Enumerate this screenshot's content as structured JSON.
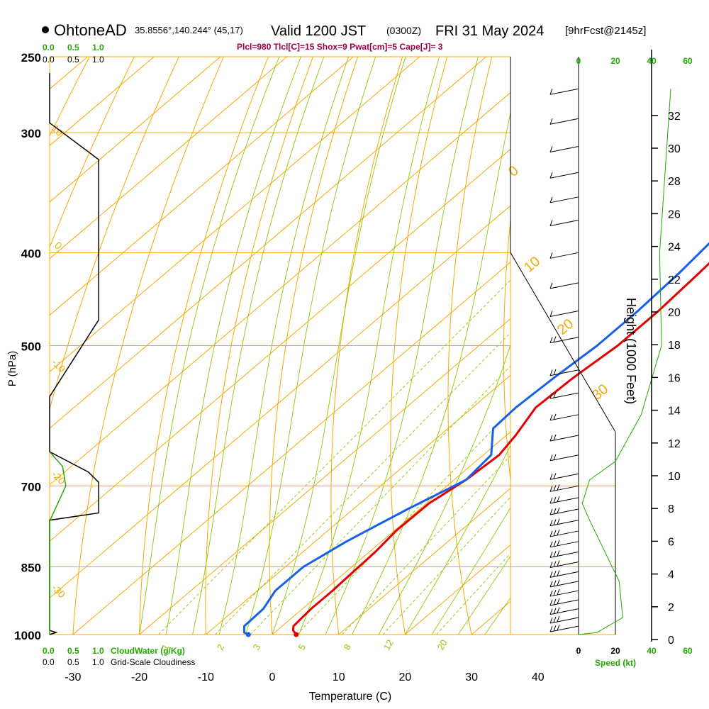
{
  "header": {
    "station": "OhtoneAD",
    "coords": "35.8556°,140.244° (45,17)",
    "valid": "Valid 1200 JST",
    "valid_z": "(0300Z)",
    "date": "FRI 31 May 2024",
    "fcst": "[9hrFcst@2145z]",
    "indices": "Plcl=980 Tlcl[C]=15 Shox=9 Pwat[cm]=5 Cape[J]= 3"
  },
  "colors": {
    "temperature": "#e00000",
    "dewpoint": "#1560e8",
    "isobar": "#f5a800",
    "dry_adiabat": "#f5a800",
    "moist_adiabat": "#8cc800",
    "mixing_ratio": "#8cc800",
    "green_text": "#22aa00",
    "maroon_text": "#a0004a"
  },
  "chart_data": {
    "type": "line",
    "xlabel": "Temperature (C)",
    "ylabel": "P (hPa)",
    "y2label": "Height (1000 Feet)",
    "x_ticks": [
      -30,
      -20,
      -10,
      0,
      10,
      20,
      30,
      40
    ],
    "pressure_ticks": [
      250,
      300,
      400,
      500,
      700,
      850,
      1000
    ],
    "height_ticks": [
      0,
      2,
      4,
      6,
      8,
      10,
      12,
      14,
      16,
      18,
      20,
      22,
      24,
      26,
      28,
      30,
      32
    ],
    "xlim": [
      -35,
      36
    ],
    "ylim": [
      1000,
      250
    ],
    "dry_adiabat_labels": [
      "10",
      "0",
      "-10",
      "-20",
      "-30"
    ],
    "theta_labels": [
      "0",
      "10",
      "20",
      "30"
    ],
    "mixing_ratio_labels": [
      "1",
      "2",
      "3",
      "5",
      "8",
      "12",
      "20"
    ],
    "cloud_axis": {
      "top_labels_green": [
        "0.0",
        "0.5",
        "1.0"
      ],
      "top_labels_black": [
        "0.0",
        "0.5",
        "1.0"
      ],
      "bottom_green_labels": [
        "0.0",
        "0.5",
        "1.0"
      ],
      "bottom_green_title": "CloudWater (g/Kg)",
      "bottom_black_labels": [
        "0.0",
        "0.5",
        "1.0"
      ],
      "bottom_black_title": "Grid-Scale Cloudiness"
    },
    "speed_axis": {
      "title": "Speed (kt)",
      "top_labels": [
        "0",
        "20",
        "40",
        "60"
      ],
      "bottom_labels": [
        "0",
        "20",
        "40",
        "60"
      ]
    },
    "series": [
      {
        "name": "Temperature",
        "points": [
          [
            -7.2,
            265
          ],
          [
            -5.8,
            280
          ],
          [
            -4.0,
            300
          ],
          [
            -2.5,
            325
          ],
          [
            -1.5,
            350
          ],
          [
            -0.5,
            380
          ],
          [
            0.3,
            420
          ],
          [
            0.9,
            460
          ],
          [
            0.9,
            500
          ],
          [
            -0.1,
            540
          ],
          [
            -0.5,
            580
          ],
          [
            1.4,
            620
          ],
          [
            2.4,
            650
          ],
          [
            1.8,
            690
          ],
          [
            0.4,
            730
          ],
          [
            0.3,
            780
          ],
          [
            0.9,
            820
          ],
          [
            1.1,
            860
          ],
          [
            1.3,
            900
          ],
          [
            1.3,
            940
          ],
          [
            1.7,
            980
          ],
          [
            2.4,
            990
          ],
          [
            3.6,
            1000
          ]
        ]
      },
      {
        "name": "Dewpoint",
        "points": [
          [
            -11.4,
            265
          ],
          [
            -9.4,
            290
          ],
          [
            -8.1,
            305
          ],
          [
            -6.3,
            325
          ],
          [
            -4.8,
            350
          ],
          [
            -3.7,
            380
          ],
          [
            -2.7,
            420
          ],
          [
            -2.2,
            460
          ],
          [
            -2.2,
            500
          ],
          [
            -3.0,
            540
          ],
          [
            -3.5,
            580
          ],
          [
            -3.2,
            610
          ],
          [
            1.2,
            650
          ],
          [
            1.8,
            690
          ],
          [
            -1.8,
            740
          ],
          [
            -5.3,
            800
          ],
          [
            -7.3,
            850
          ],
          [
            -7.3,
            900
          ],
          [
            -5.9,
            940
          ],
          [
            -5.7,
            980
          ],
          [
            -4.6,
            995
          ],
          [
            -3.6,
            1000
          ]
        ]
      }
    ],
    "cloudiness_profile": [
      [
        0.0,
        260
      ],
      [
        0.0,
        293
      ],
      [
        0.76,
        320
      ],
      [
        0.76,
        470
      ],
      [
        0.0,
        565
      ],
      [
        0.0,
        645
      ],
      [
        0.6,
        677
      ],
      [
        0.76,
        694
      ],
      [
        0.76,
        747
      ],
      [
        0.0,
        760
      ],
      [
        0.0,
        990
      ],
      [
        0.1,
        995
      ],
      [
        0.0,
        1000
      ]
    ],
    "cloudwater_profile": [
      [
        0.0,
        645
      ],
      [
        0.2,
        668
      ],
      [
        0.25,
        700
      ],
      [
        0.0,
        762
      ],
      [
        0.0,
        1000
      ]
    ],
    "wind_speed_profile_kt": [
      [
        0,
        1000
      ],
      [
        10,
        995
      ],
      [
        24,
        960
      ],
      [
        22,
        880
      ],
      [
        6,
        760
      ],
      [
        2,
        730
      ],
      [
        6,
        690
      ],
      [
        20,
        660
      ],
      [
        34,
        590
      ],
      [
        45,
        500
      ],
      [
        44,
        400
      ],
      [
        50,
        270
      ]
    ]
  },
  "barbs_label": "",
  "branding": ""
}
